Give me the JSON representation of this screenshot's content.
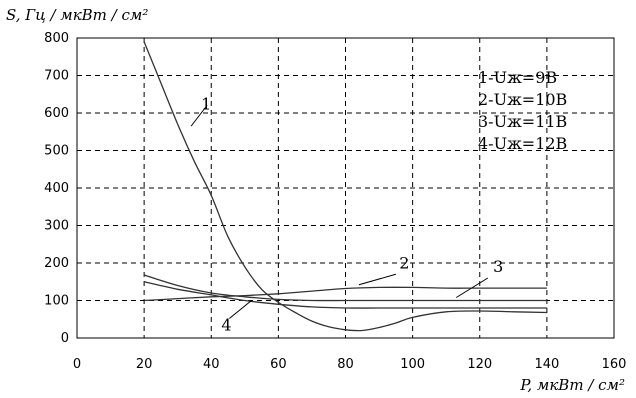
{
  "chart_data": {
    "type": "line",
    "ylabel": "S, Гц / мкВт / см²",
    "xlabel": "P, мкВт / см²",
    "xlim": [
      0,
      160
    ],
    "ylim": [
      0,
      800
    ],
    "xticks": [
      0,
      20,
      40,
      60,
      80,
      100,
      120,
      140,
      160
    ],
    "yticks": [
      0,
      100,
      200,
      300,
      400,
      500,
      600,
      700,
      800
    ],
    "grid": true,
    "legend_position": "top-right",
    "legend": [
      "1-Uж=9В",
      "2-Uж=10В",
      "3-Uж=11В",
      "4-Uж=12В"
    ],
    "series": [
      {
        "name": "1",
        "x": [
          20,
          25,
          30,
          35,
          40,
          45,
          50,
          55,
          60,
          65,
          70,
          75,
          80,
          85,
          90,
          95,
          100,
          110,
          120,
          130,
          140
        ],
        "values": [
          790,
          680,
          570,
          470,
          380,
          270,
          190,
          130,
          95,
          68,
          45,
          30,
          22,
          20,
          28,
          40,
          55,
          70,
          72,
          70,
          68
        ]
      },
      {
        "name": "2",
        "x": [
          20,
          30,
          40,
          50,
          60,
          70,
          80,
          90,
          100,
          110,
          120,
          130,
          140
        ],
        "values": [
          100,
          105,
          110,
          113,
          118,
          125,
          132,
          135,
          135,
          133,
          133,
          133,
          133
        ]
      },
      {
        "name": "3",
        "x": [
          20,
          30,
          40,
          50,
          60,
          70,
          80,
          90,
          100,
          110,
          120,
          130,
          140
        ],
        "values": [
          168,
          140,
          120,
          110,
          103,
          100,
          100,
          100,
          100,
          100,
          100,
          100,
          100
        ]
      },
      {
        "name": "4",
        "x": [
          20,
          30,
          40,
          50,
          60,
          70,
          80,
          90,
          100,
          110,
          120,
          130,
          140
        ],
        "values": [
          150,
          130,
          115,
          100,
          90,
          83,
          80,
          80,
          80,
          80,
          80,
          80,
          80
        ]
      }
    ],
    "curve_labels": [
      {
        "text": "1",
        "x": 37,
        "y": 610
      },
      {
        "text": "2",
        "x": 96,
        "y": 186
      },
      {
        "text": "3",
        "x": 124,
        "y": 176
      },
      {
        "text": "4",
        "x": 43,
        "y": 20
      }
    ]
  }
}
